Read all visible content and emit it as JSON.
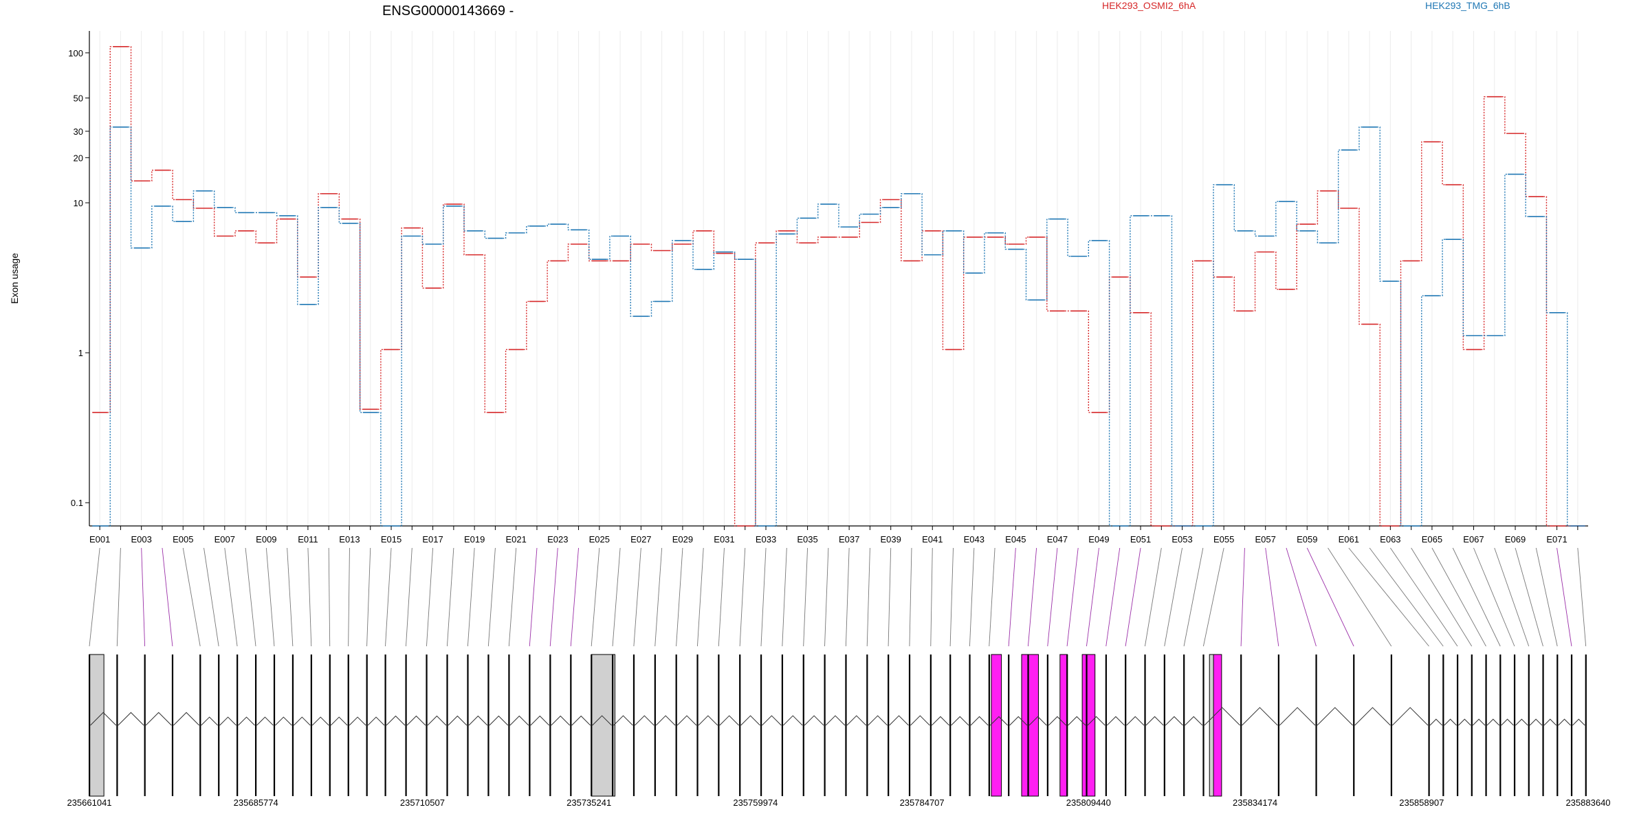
{
  "chart_data": {
    "type": "line",
    "title": "ENSG00000143669 -",
    "ylabel": "Exon usage",
    "yscale": "log",
    "ylim": [
      0.07,
      140
    ],
    "yticks": [
      0.1,
      1,
      10,
      20,
      30,
      50,
      100
    ],
    "ytick_labels": [
      "0.1",
      "1",
      "10",
      "20",
      "30",
      "50",
      "100"
    ],
    "grid": "vertical",
    "legend_position": "top",
    "categories": [
      "E001",
      "E002",
      "E003",
      "E004",
      "E005",
      "E006",
      "E007",
      "E008",
      "E009",
      "E010",
      "E011",
      "E012",
      "E013",
      "E014",
      "E015",
      "E016",
      "E017",
      "E018",
      "E019",
      "E020",
      "E021",
      "E022",
      "E023",
      "E024",
      "E025",
      "E026",
      "E027",
      "E028",
      "E029",
      "E030",
      "E031",
      "E032",
      "E033",
      "E034",
      "E035",
      "E036",
      "E037",
      "E038",
      "E039",
      "E040",
      "E041",
      "E042",
      "E043",
      "E044",
      "E045",
      "E046",
      "E047",
      "E048",
      "E049",
      "E050",
      "E051",
      "E052",
      "E053",
      "E054",
      "E055",
      "E056",
      "E057",
      "E058",
      "E059",
      "E060",
      "E061",
      "E062",
      "E063",
      "E064",
      "E065",
      "E066",
      "E067",
      "E068",
      "E069",
      "E070",
      "E071",
      "E072"
    ],
    "series": [
      {
        "name": "HEK293_OSMI2_6hA",
        "color": "#d62728",
        "values": [
          0.4,
          110,
          14,
          16.5,
          10.5,
          9.2,
          6,
          6.5,
          5.4,
          7.8,
          3.2,
          11.5,
          7.8,
          0.42,
          1.05,
          6.8,
          2.7,
          9.8,
          4.5,
          0.4,
          1.05,
          2.2,
          4.1,
          5.3,
          4.1,
          4.1,
          5.3,
          4.8,
          5.3,
          6.5,
          4.6,
          0.07,
          5.4,
          6.5,
          5.4,
          5.9,
          5.9,
          7.4,
          10.5,
          4.1,
          6.5,
          1.05,
          5.9,
          5.9,
          5.3,
          5.9,
          1.9,
          1.9,
          0.4,
          3.2,
          1.85,
          0.07,
          0.07,
          4.1,
          3.2,
          1.9,
          4.7,
          2.65,
          7.2,
          12,
          9.2,
          1.55,
          0.07,
          4.1,
          25.5,
          13.2,
          1.05,
          51,
          29,
          11,
          0.07,
          0.07
        ]
      },
      {
        "name": "HEK293_TMG_6hB",
        "color": "#1f77b4",
        "values": [
          0.07,
          32,
          5,
          9.5,
          7.5,
          12,
          9.3,
          8.6,
          8.6,
          8.2,
          2.1,
          9.3,
          7.3,
          0.4,
          0.07,
          6,
          5.3,
          9.5,
          6.5,
          5.8,
          6.3,
          7,
          7.2,
          6.6,
          4.2,
          6,
          1.75,
          2.2,
          5.6,
          3.6,
          4.7,
          4.2,
          0.07,
          6.2,
          7.9,
          9.8,
          6.9,
          8.4,
          9.3,
          11.5,
          4.5,
          6.5,
          3.4,
          6.3,
          4.9,
          2.25,
          7.8,
          4.4,
          5.6,
          0.07,
          8.2,
          8.2,
          0.07,
          0.07,
          13.2,
          6.5,
          6,
          10.2,
          6.5,
          5.4,
          22.5,
          32,
          3,
          0.07,
          2.4,
          5.7,
          1.3,
          1.3,
          15.5,
          8.1,
          1.85,
          0.07
        ]
      }
    ],
    "exon_tick_labels": [
      "E001",
      "E003",
      "E005",
      "E007",
      "E009",
      "E011",
      "E013",
      "E015",
      "E017",
      "E019",
      "E021",
      "E023",
      "E025",
      "E027",
      "E029",
      "E031",
      "E033",
      "E035",
      "E037",
      "E039",
      "E041",
      "E043",
      "E045",
      "E047",
      "E049",
      "E051",
      "E053",
      "E055",
      "E057",
      "E059",
      "E061",
      "E063",
      "E065",
      "E067",
      "E069",
      "E071"
    ],
    "genomic_axis": {
      "range": [
        235661041,
        235883640
      ],
      "tick_labels": [
        "235661041",
        "235685774",
        "235710507",
        "235735241",
        "235759974",
        "235784707",
        "235809440",
        "235834174",
        "235858907",
        "235883640"
      ]
    },
    "gene_model": {
      "exon_colors": {
        "unused": "#000000",
        "highlight": "#ff1ff2",
        "wide_gray": "#d0d0d0"
      }
    }
  }
}
